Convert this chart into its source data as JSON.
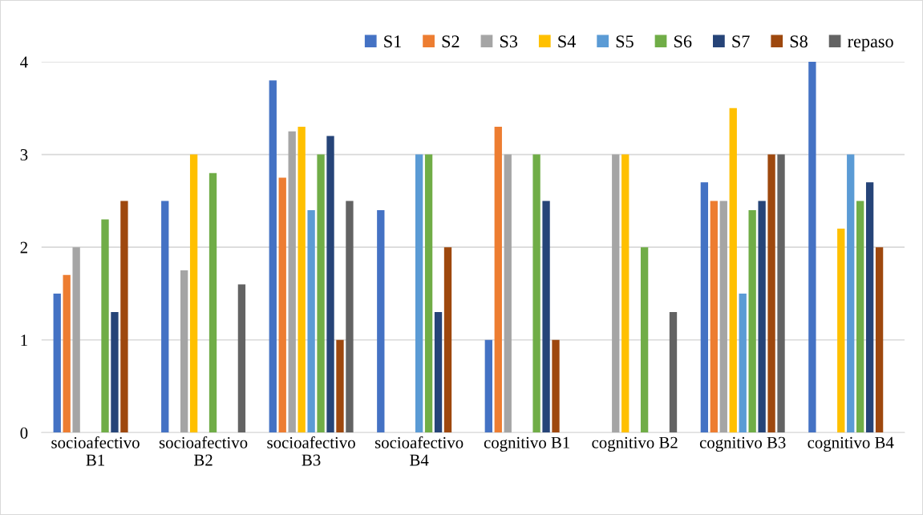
{
  "chart_data": {
    "type": "bar",
    "categories": [
      "socioafectivo\nB1",
      "socioafectivo\nB2",
      "socioafectivo\nB3",
      "socioafectivo\nB4",
      "cognitivo B1",
      "cognitivo B2",
      "cognitivo B3",
      "cognitivo B4"
    ],
    "series": [
      {
        "name": "S1",
        "color": "#4472c4",
        "values": [
          1.5,
          2.5,
          3.8,
          2.4,
          1,
          null,
          2.7,
          4
        ]
      },
      {
        "name": "S2",
        "color": "#ed7d31",
        "values": [
          1.7,
          null,
          2.75,
          null,
          3.3,
          null,
          2.5,
          null
        ]
      },
      {
        "name": "S3",
        "color": "#a5a5a5",
        "values": [
          2,
          1.75,
          3.25,
          null,
          3,
          3,
          2.5,
          null
        ]
      },
      {
        "name": "S4",
        "color": "#ffc000",
        "values": [
          null,
          3,
          3.3,
          null,
          null,
          3,
          3.5,
          2.2
        ]
      },
      {
        "name": "S5",
        "color": "#5b9bd5",
        "values": [
          null,
          null,
          2.4,
          3,
          null,
          null,
          1.5,
          3
        ]
      },
      {
        "name": "S6",
        "color": "#70ad47",
        "values": [
          2.3,
          2.8,
          3,
          3,
          3,
          2,
          2.4,
          2.5
        ]
      },
      {
        "name": "S7",
        "color": "#264478",
        "values": [
          1.3,
          null,
          3.2,
          1.3,
          2.5,
          null,
          2.5,
          2.7
        ]
      },
      {
        "name": "S8",
        "color": "#9e480e",
        "values": [
          2.5,
          null,
          1,
          2,
          1,
          null,
          3,
          2
        ]
      },
      {
        "name": "repaso",
        "color": "#636363",
        "values": [
          null,
          1.6,
          2.5,
          null,
          null,
          1.3,
          3,
          null
        ]
      }
    ],
    "ylim": [
      0,
      4
    ],
    "yticks": [
      0,
      1,
      2,
      3,
      4
    ],
    "grid": "y",
    "legend": "top right"
  }
}
